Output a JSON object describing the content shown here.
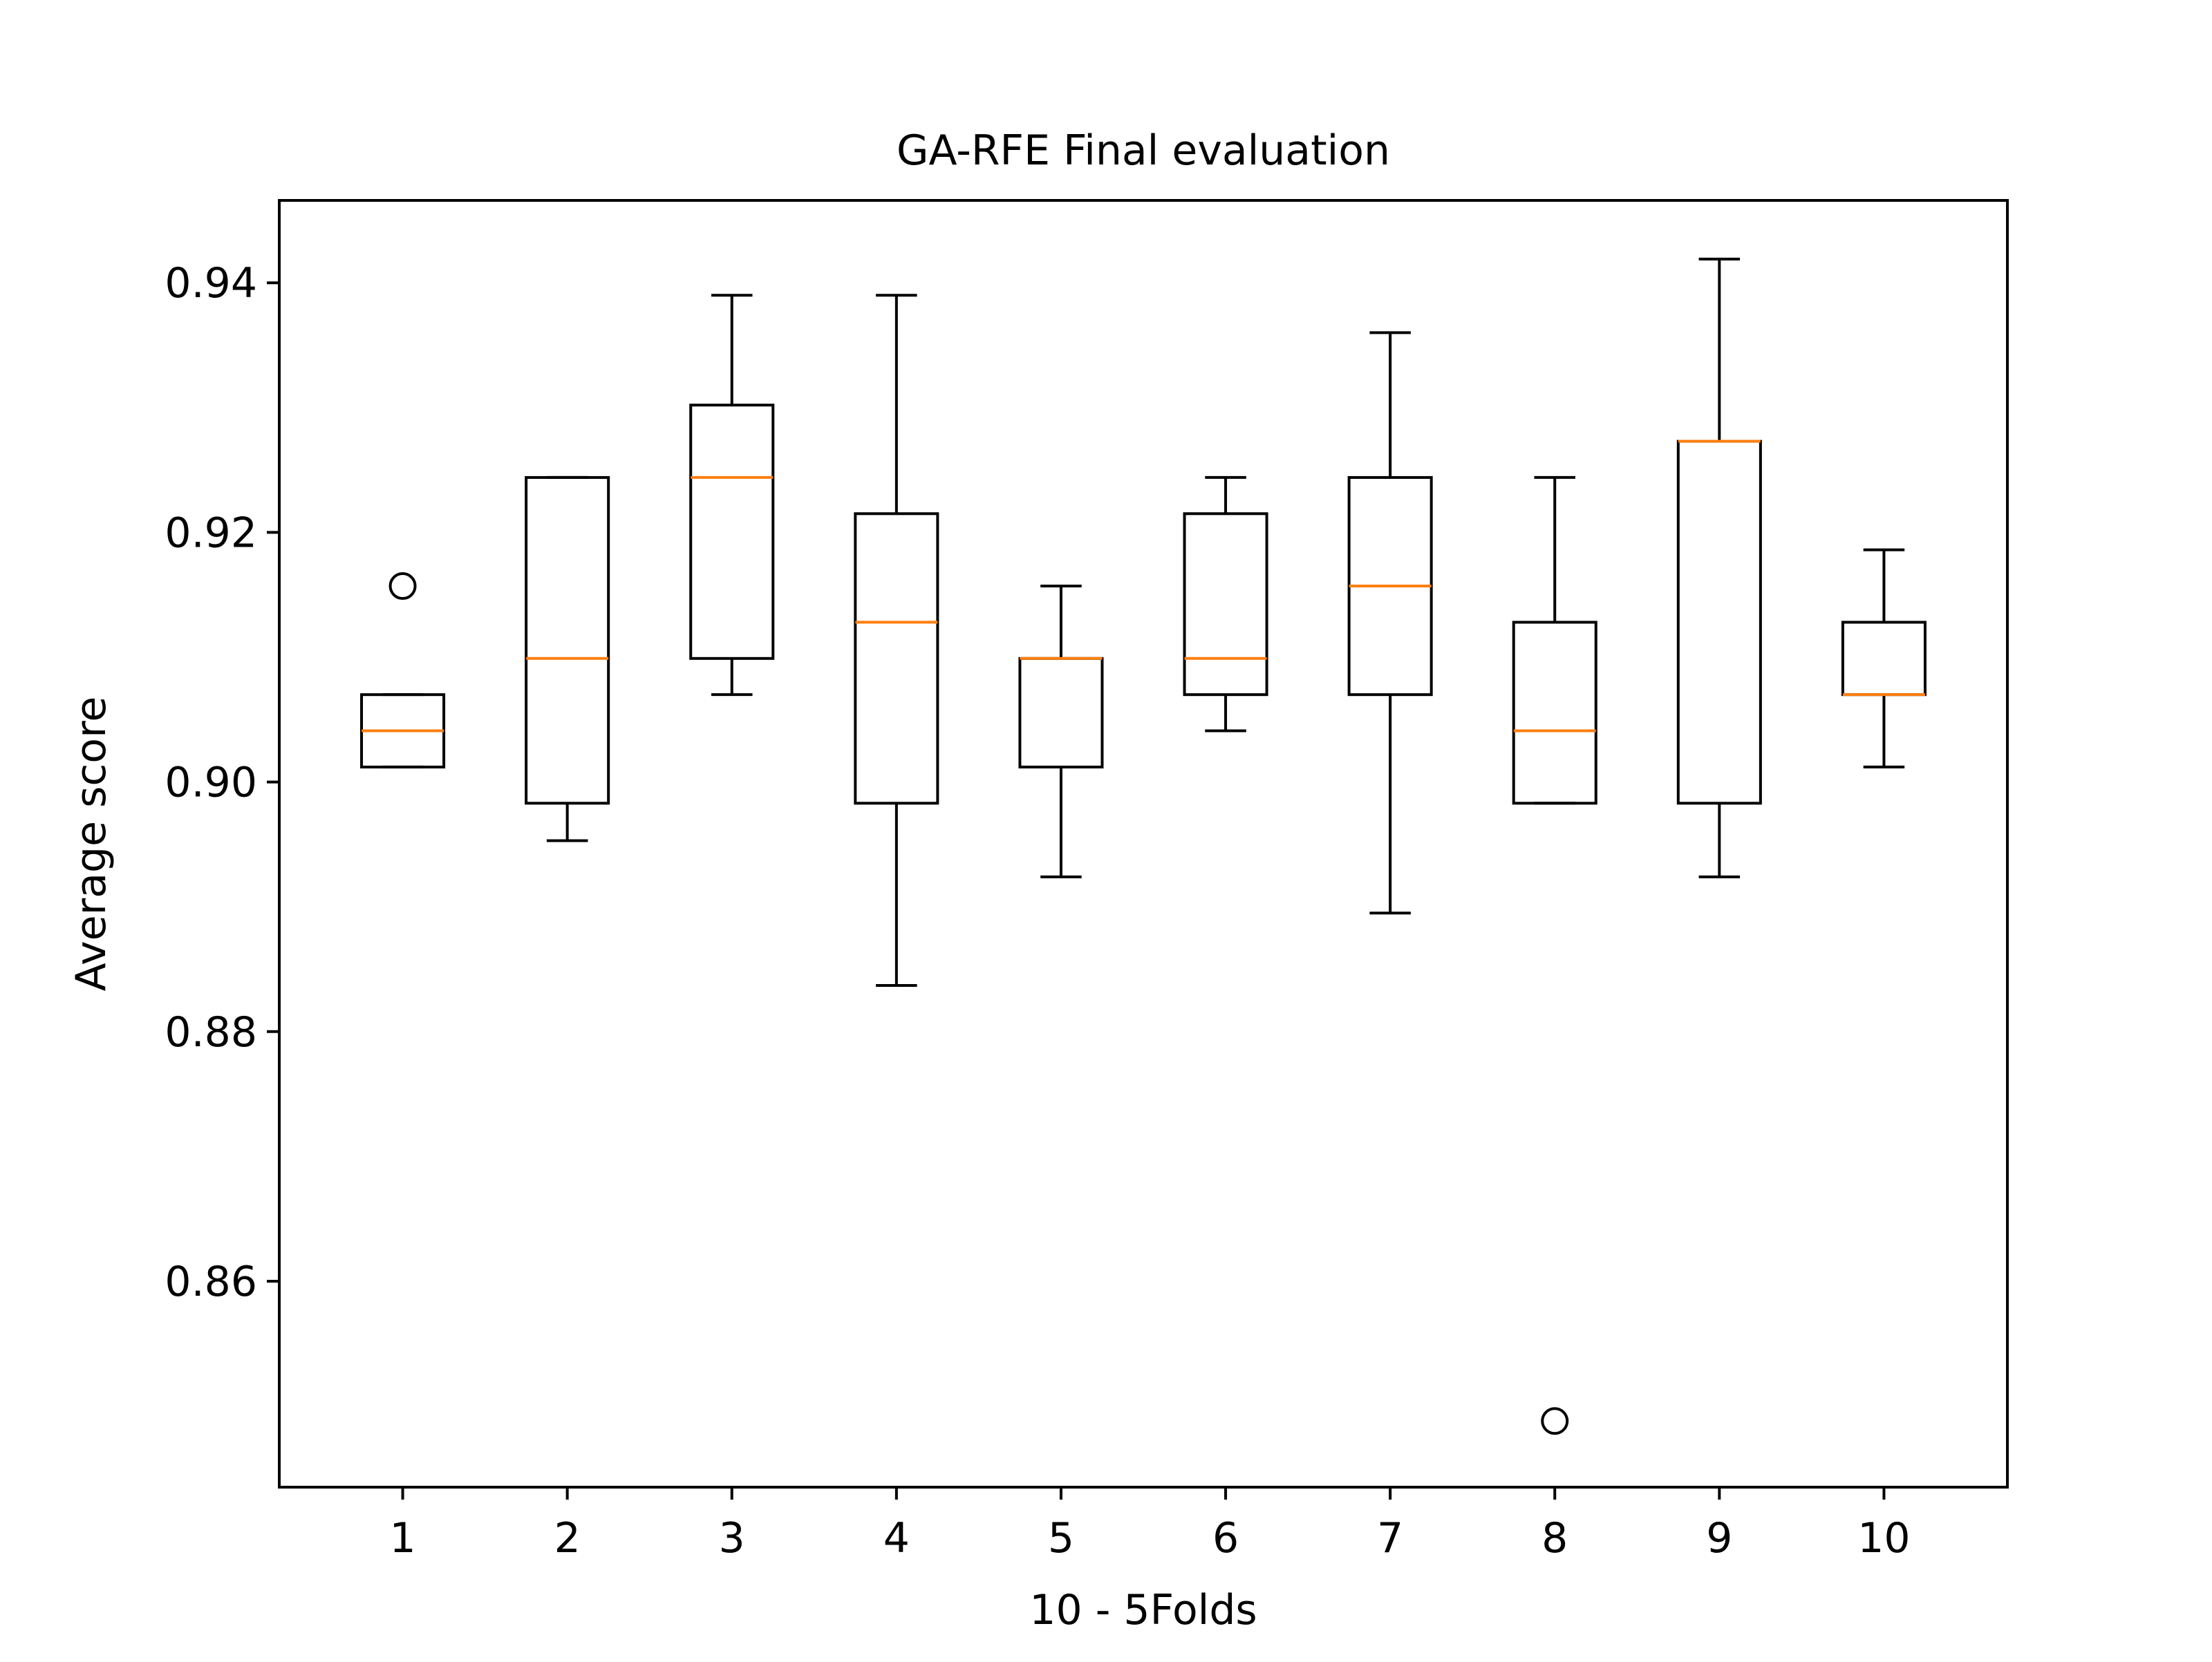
{
  "chart_data": {
    "type": "box",
    "title": "GA-RFE Final evaluation",
    "xlabel": "10 - 5Folds",
    "ylabel": "Average score",
    "categories": [
      "1",
      "2",
      "3",
      "4",
      "5",
      "6",
      "7",
      "8",
      "9",
      "10"
    ],
    "yticks": [
      0.86,
      0.88,
      0.9,
      0.92,
      0.94
    ],
    "ytick_labels": [
      "0.86",
      "0.88",
      "0.90",
      "0.92",
      "0.94"
    ],
    "ylim": [
      0.8435,
      0.9466
    ],
    "grid": false,
    "boxes": [
      {
        "whisker_low": 0.9012,
        "q1": 0.9012,
        "median": 0.9041,
        "q3": 0.907,
        "whisker_high": 0.907,
        "outliers": [
          0.9157
        ]
      },
      {
        "whisker_low": 0.8953,
        "q1": 0.8983,
        "median": 0.9099,
        "q3": 0.9244,
        "whisker_high": 0.9244,
        "outliers": []
      },
      {
        "whisker_low": 0.907,
        "q1": 0.9099,
        "median": 0.9244,
        "q3": 0.9302,
        "whisker_high": 0.939,
        "outliers": []
      },
      {
        "whisker_low": 0.8837,
        "q1": 0.8983,
        "median": 0.9128,
        "q3": 0.9215,
        "whisker_high": 0.939,
        "outliers": []
      },
      {
        "whisker_low": 0.8924,
        "q1": 0.9012,
        "median": 0.9099,
        "q3": 0.9099,
        "whisker_high": 0.9157,
        "outliers": []
      },
      {
        "whisker_low": 0.9041,
        "q1": 0.907,
        "median": 0.9099,
        "q3": 0.9215,
        "whisker_high": 0.9244,
        "outliers": []
      },
      {
        "whisker_low": 0.8895,
        "q1": 0.907,
        "median": 0.9157,
        "q3": 0.9244,
        "whisker_high": 0.936,
        "outliers": []
      },
      {
        "whisker_low": 0.8983,
        "q1": 0.8983,
        "median": 0.9041,
        "q3": 0.9128,
        "whisker_high": 0.9244,
        "outliers": [
          0.8488
        ]
      },
      {
        "whisker_low": 0.8924,
        "q1": 0.8983,
        "median": 0.9273,
        "q3": 0.9273,
        "whisker_high": 0.9419,
        "outliers": []
      },
      {
        "whisker_low": 0.9012,
        "q1": 0.907,
        "median": 0.907,
        "q3": 0.9128,
        "whisker_high": 0.9186,
        "outliers": []
      }
    ],
    "colors": {
      "box": "#000000",
      "median": "#ff7f0e",
      "background": "#ffffff"
    }
  }
}
